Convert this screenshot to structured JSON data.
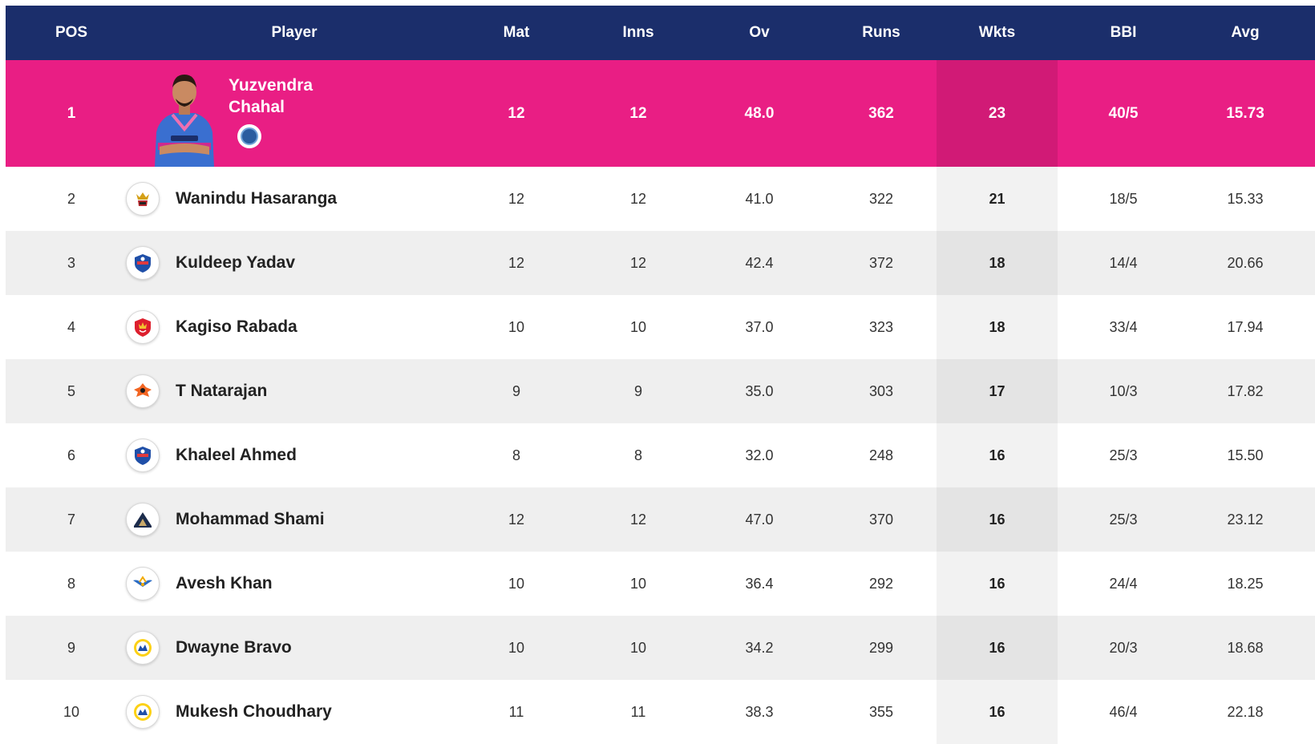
{
  "colors": {
    "header_bg": "#1b2e6b",
    "leader_bg": "#e91e84",
    "row_even_bg": "#efefef",
    "row_odd_bg": "#ffffff"
  },
  "header": {
    "pos": "POS",
    "player": "Player",
    "mat": "Mat",
    "inns": "Inns",
    "ov": "Ov",
    "runs": "Runs",
    "wkts": "Wkts",
    "bbi": "BBI",
    "avg": "Avg"
  },
  "leader": {
    "pos": "1",
    "name": "Yuzvendra Chahal",
    "team_icon": "rajasthan-royals-logo",
    "mat": "12",
    "inns": "12",
    "ov": "48.0",
    "runs": "362",
    "wkts": "23",
    "bbi": "40/5",
    "avg": "15.73"
  },
  "rows": [
    {
      "pos": "2",
      "name": "Wanindu Hasaranga",
      "team_icon": "rcb-logo",
      "mat": "12",
      "inns": "12",
      "ov": "41.0",
      "runs": "322",
      "wkts": "21",
      "bbi": "18/5",
      "avg": "15.33"
    },
    {
      "pos": "3",
      "name": "Kuldeep Yadav",
      "team_icon": "delhi-capitals-logo",
      "mat": "12",
      "inns": "12",
      "ov": "42.4",
      "runs": "372",
      "wkts": "18",
      "bbi": "14/4",
      "avg": "20.66"
    },
    {
      "pos": "4",
      "name": "Kagiso Rabada",
      "team_icon": "punjab-kings-logo",
      "mat": "10",
      "inns": "10",
      "ov": "37.0",
      "runs": "323",
      "wkts": "18",
      "bbi": "33/4",
      "avg": "17.94"
    },
    {
      "pos": "5",
      "name": "T Natarajan",
      "team_icon": "sunrisers-hyderabad-logo",
      "mat": "9",
      "inns": "9",
      "ov": "35.0",
      "runs": "303",
      "wkts": "17",
      "bbi": "10/3",
      "avg": "17.82"
    },
    {
      "pos": "6",
      "name": "Khaleel Ahmed",
      "team_icon": "delhi-capitals-logo",
      "mat": "8",
      "inns": "8",
      "ov": "32.0",
      "runs": "248",
      "wkts": "16",
      "bbi": "25/3",
      "avg": "15.50"
    },
    {
      "pos": "7",
      "name": "Mohammad Shami",
      "team_icon": "gujarat-titans-logo",
      "mat": "12",
      "inns": "12",
      "ov": "47.0",
      "runs": "370",
      "wkts": "16",
      "bbi": "25/3",
      "avg": "23.12"
    },
    {
      "pos": "8",
      "name": "Avesh Khan",
      "team_icon": "lucknow-super-giants-logo",
      "mat": "10",
      "inns": "10",
      "ov": "36.4",
      "runs": "292",
      "wkts": "16",
      "bbi": "24/4",
      "avg": "18.25"
    },
    {
      "pos": "9",
      "name": "Dwayne Bravo",
      "team_icon": "chennai-super-kings-logo",
      "mat": "10",
      "inns": "10",
      "ov": "34.2",
      "runs": "299",
      "wkts": "16",
      "bbi": "20/3",
      "avg": "18.68"
    },
    {
      "pos": "10",
      "name": "Mukesh Choudhary",
      "team_icon": "chennai-super-kings-logo",
      "mat": "11",
      "inns": "11",
      "ov": "38.3",
      "runs": "355",
      "wkts": "16",
      "bbi": "46/4",
      "avg": "22.18"
    }
  ]
}
